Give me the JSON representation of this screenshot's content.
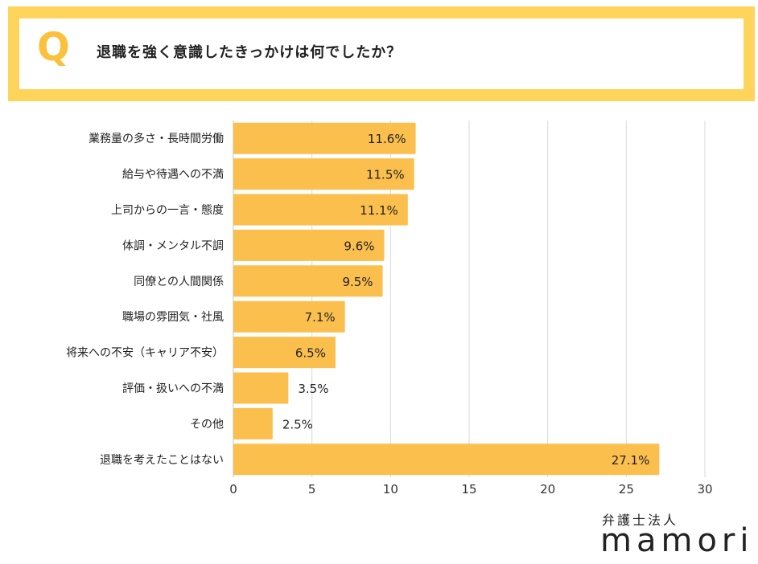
{
  "question": {
    "marker": "Q",
    "text": "退職を強く意識したきっかけは何でしたか？"
  },
  "brand": {
    "top": "弁護士法人",
    "main": "mamori"
  },
  "colors": {
    "bar": "#fbbf4e",
    "banner": "#ffd45a",
    "q": "#fbc13c",
    "grid": "#d9d9d9"
  },
  "chart_data": {
    "type": "bar",
    "orientation": "horizontal",
    "title": "退職を強く意識したきっかけは何でしたか？",
    "categories": [
      "業務量の多さ・長時間労働",
      "給与や待遇への不満",
      "上司からの一言・態度",
      "体調・メンタル不調",
      "同僚との人間関係",
      "職場の雰囲気・社風",
      "将来への不安（キャリア不安）",
      "評価・扱いへの不満",
      "その他",
      "退職を考えたことはない"
    ],
    "values": [
      11.6,
      11.5,
      11.1,
      9.6,
      9.5,
      7.1,
      6.5,
      3.5,
      2.5,
      27.1
    ],
    "value_labels": [
      "11.6%",
      "11.5%",
      "11.1%",
      "9.6%",
      "9.5%",
      "7.1%",
      "6.5%",
      "3.5%",
      "2.5%",
      "27.1%"
    ],
    "xlim": [
      0,
      30
    ],
    "xticks": [
      0,
      5,
      10,
      15,
      20,
      25,
      30
    ],
    "grid": true,
    "xlabel": "",
    "ylabel": ""
  }
}
